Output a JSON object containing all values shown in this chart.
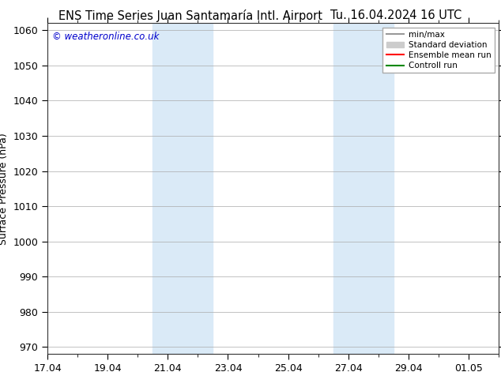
{
  "title_left": "ENS Time Series Juan Santamaría Intl. Airport",
  "title_right": "Tu. 16.04.2024 16 UTC",
  "ylabel": "Surface Pressure (hPa)",
  "ylim": [
    968,
    1062
  ],
  "yticks": [
    970,
    980,
    990,
    1000,
    1010,
    1020,
    1030,
    1040,
    1050,
    1060
  ],
  "xtick_labels": [
    "17.04",
    "19.04",
    "21.04",
    "23.04",
    "25.04",
    "27.04",
    "29.04",
    "01.05"
  ],
  "xtick_positions": [
    0,
    2,
    4,
    6,
    8,
    10,
    12,
    14
  ],
  "xlim": [
    0,
    15
  ],
  "shaded_bands": [
    {
      "x_start": 3.5,
      "x_end": 5.5,
      "color": "#daeaf7"
    },
    {
      "x_start": 9.5,
      "x_end": 11.5,
      "color": "#daeaf7"
    }
  ],
  "copyright_text": "© weatheronline.co.uk",
  "copyright_color": "#0000cc",
  "bg_color": "#ffffff",
  "plot_bg_color": "#ffffff",
  "grid_color": "#aaaaaa",
  "legend_items": [
    {
      "label": "min/max",
      "color": "#999999",
      "lw": 1.5,
      "style": "-",
      "type": "line"
    },
    {
      "label": "Standard deviation",
      "color": "#cccccc",
      "lw": 8,
      "style": "-",
      "type": "patch"
    },
    {
      "label": "Ensemble mean run",
      "color": "#ff0000",
      "lw": 1.5,
      "style": "-",
      "type": "line"
    },
    {
      "label": "Controll run",
      "color": "#008800",
      "lw": 1.5,
      "style": "-",
      "type": "line"
    }
  ],
  "title_fontsize": 10.5,
  "tick_fontsize": 9,
  "ylabel_fontsize": 9
}
